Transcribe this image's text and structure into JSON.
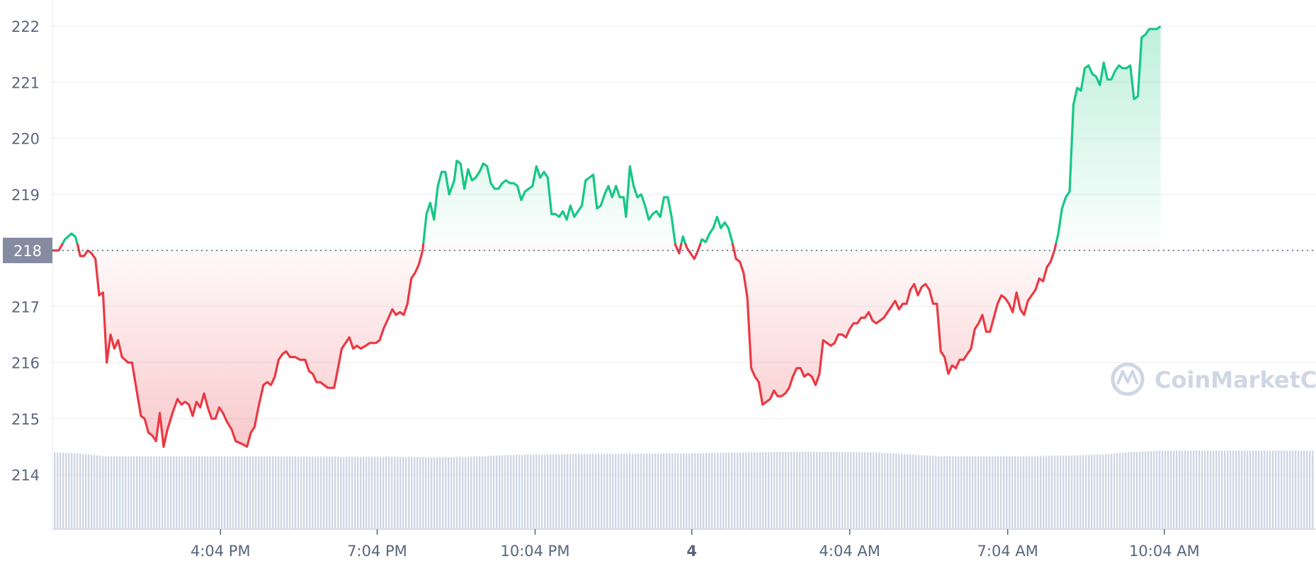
{
  "chart_data": {
    "type": "area",
    "y_ticks": [
      214,
      215,
      216,
      217,
      218,
      219,
      220,
      221,
      222
    ],
    "ylim": [
      213,
      222.4
    ],
    "x_ticks": [
      {
        "label": "4:04 PM",
        "bold": false,
        "t": 0.133
      },
      {
        "label": "7:04 PM",
        "bold": false,
        "t": 0.257
      },
      {
        "label": "10:04 PM",
        "bold": false,
        "t": 0.382
      },
      {
        "label": "4",
        "bold": true,
        "t": 0.506
      },
      {
        "label": "4:04 AM",
        "bold": false,
        "t": 0.631
      },
      {
        "label": "7:04 AM",
        "bold": false,
        "t": 0.756
      },
      {
        "label": "10:04 AM",
        "bold": false,
        "t": 0.88
      }
    ],
    "reference_line": {
      "value": 218.0,
      "label": "218"
    },
    "colors": {
      "up": "#16c784",
      "down": "#ea3943",
      "grid": "#eff2f5",
      "ref_label_bg": "#858ca2",
      "volume": "#cfd6e4"
    },
    "watermark": "CoinMarketCap",
    "price_series": [
      [
        0.0,
        218.0
      ],
      [
        0.005,
        218.0
      ],
      [
        0.01,
        218.2
      ],
      [
        0.015,
        218.3
      ],
      [
        0.018,
        218.25
      ],
      [
        0.02,
        218.1
      ],
      [
        0.022,
        217.9
      ],
      [
        0.025,
        217.9
      ],
      [
        0.028,
        218.0
      ],
      [
        0.031,
        217.95
      ],
      [
        0.034,
        217.85
      ],
      [
        0.037,
        217.2
      ],
      [
        0.04,
        217.25
      ],
      [
        0.043,
        216.0
      ],
      [
        0.046,
        216.5
      ],
      [
        0.049,
        216.25
      ],
      [
        0.052,
        216.4
      ],
      [
        0.055,
        216.1
      ],
      [
        0.06,
        216.0
      ],
      [
        0.063,
        216.0
      ],
      [
        0.07,
        215.05
      ],
      [
        0.073,
        215.0
      ],
      [
        0.076,
        214.75
      ],
      [
        0.079,
        214.7
      ],
      [
        0.082,
        214.6
      ],
      [
        0.085,
        215.1
      ],
      [
        0.088,
        214.5
      ],
      [
        0.091,
        214.8
      ],
      [
        0.095,
        215.1
      ],
      [
        0.099,
        215.35
      ],
      [
        0.102,
        215.25
      ],
      [
        0.105,
        215.3
      ],
      [
        0.108,
        215.25
      ],
      [
        0.111,
        215.05
      ],
      [
        0.114,
        215.3
      ],
      [
        0.117,
        215.2
      ],
      [
        0.12,
        215.45
      ],
      [
        0.123,
        215.2
      ],
      [
        0.126,
        215.0
      ],
      [
        0.129,
        215.0
      ],
      [
        0.132,
        215.2
      ],
      [
        0.135,
        215.1
      ],
      [
        0.138,
        214.95
      ],
      [
        0.142,
        214.8
      ],
      [
        0.145,
        214.6
      ],
      [
        0.15,
        214.55
      ],
      [
        0.154,
        214.5
      ],
      [
        0.157,
        214.75
      ],
      [
        0.16,
        214.85
      ],
      [
        0.163,
        215.2
      ],
      [
        0.167,
        215.6
      ],
      [
        0.17,
        215.65
      ],
      [
        0.173,
        215.6
      ],
      [
        0.176,
        215.75
      ],
      [
        0.179,
        216.05
      ],
      [
        0.182,
        216.15
      ],
      [
        0.185,
        216.2
      ],
      [
        0.188,
        216.1
      ],
      [
        0.192,
        216.1
      ],
      [
        0.196,
        216.05
      ],
      [
        0.2,
        216.05
      ],
      [
        0.203,
        215.85
      ],
      [
        0.206,
        215.8
      ],
      [
        0.209,
        215.65
      ],
      [
        0.212,
        215.65
      ],
      [
        0.215,
        215.6
      ],
      [
        0.218,
        215.55
      ],
      [
        0.223,
        215.55
      ],
      [
        0.226,
        215.9
      ],
      [
        0.229,
        216.25
      ],
      [
        0.232,
        216.35
      ],
      [
        0.235,
        216.45
      ],
      [
        0.238,
        216.25
      ],
      [
        0.241,
        216.3
      ],
      [
        0.244,
        216.25
      ],
      [
        0.248,
        216.3
      ],
      [
        0.251,
        216.35
      ],
      [
        0.256,
        216.35
      ],
      [
        0.259,
        216.4
      ],
      [
        0.262,
        216.6
      ],
      [
        0.265,
        216.75
      ],
      [
        0.269,
        216.95
      ],
      [
        0.272,
        216.85
      ],
      [
        0.275,
        216.9
      ],
      [
        0.278,
        216.85
      ],
      [
        0.281,
        217.05
      ],
      [
        0.284,
        217.5
      ],
      [
        0.287,
        217.6
      ],
      [
        0.29,
        217.75
      ],
      [
        0.293,
        218.0
      ],
      [
        0.296,
        218.65
      ],
      [
        0.299,
        218.85
      ],
      [
        0.302,
        218.55
      ],
      [
        0.305,
        219.15
      ],
      [
        0.308,
        219.4
      ],
      [
        0.311,
        219.4
      ],
      [
        0.314,
        219.0
      ],
      [
        0.318,
        219.25
      ],
      [
        0.32,
        219.6
      ],
      [
        0.323,
        219.55
      ],
      [
        0.326,
        219.1
      ],
      [
        0.329,
        219.45
      ],
      [
        0.332,
        219.25
      ],
      [
        0.335,
        219.3
      ],
      [
        0.338,
        219.4
      ],
      [
        0.341,
        219.55
      ],
      [
        0.344,
        219.5
      ],
      [
        0.347,
        219.2
      ],
      [
        0.35,
        219.1
      ],
      [
        0.353,
        219.1
      ],
      [
        0.356,
        219.2
      ],
      [
        0.359,
        219.25
      ],
      [
        0.362,
        219.2
      ],
      [
        0.365,
        219.2
      ],
      [
        0.368,
        219.15
      ],
      [
        0.371,
        218.9
      ],
      [
        0.374,
        219.05
      ],
      [
        0.377,
        219.1
      ],
      [
        0.38,
        219.15
      ],
      [
        0.383,
        219.5
      ],
      [
        0.386,
        219.3
      ],
      [
        0.389,
        219.4
      ],
      [
        0.392,
        219.3
      ],
      [
        0.395,
        218.65
      ],
      [
        0.398,
        218.65
      ],
      [
        0.401,
        218.6
      ],
      [
        0.404,
        218.7
      ],
      [
        0.407,
        218.55
      ],
      [
        0.41,
        218.8
      ],
      [
        0.413,
        218.6
      ],
      [
        0.416,
        218.7
      ],
      [
        0.419,
        218.8
      ],
      [
        0.422,
        219.25
      ],
      [
        0.425,
        219.3
      ],
      [
        0.428,
        219.35
      ],
      [
        0.431,
        218.75
      ],
      [
        0.434,
        218.8
      ],
      [
        0.437,
        219.0
      ],
      [
        0.44,
        219.15
      ],
      [
        0.443,
        218.95
      ],
      [
        0.446,
        219.15
      ],
      [
        0.449,
        218.95
      ],
      [
        0.452,
        218.95
      ],
      [
        0.454,
        218.6
      ],
      [
        0.457,
        219.5
      ],
      [
        0.46,
        219.15
      ],
      [
        0.463,
        218.95
      ],
      [
        0.466,
        219.0
      ],
      [
        0.469,
        218.8
      ],
      [
        0.472,
        218.55
      ],
      [
        0.475,
        218.65
      ],
      [
        0.478,
        218.7
      ],
      [
        0.481,
        218.6
      ],
      [
        0.484,
        218.95
      ],
      [
        0.487,
        218.95
      ],
      [
        0.49,
        218.6
      ],
      [
        0.493,
        218.1
      ],
      [
        0.496,
        217.95
      ],
      [
        0.499,
        218.25
      ],
      [
        0.502,
        218.05
      ],
      [
        0.505,
        217.95
      ],
      [
        0.508,
        217.85
      ],
      [
        0.511,
        218.0
      ],
      [
        0.514,
        218.2
      ],
      [
        0.517,
        218.15
      ],
      [
        0.52,
        218.3
      ],
      [
        0.523,
        218.4
      ],
      [
        0.526,
        218.6
      ],
      [
        0.529,
        218.4
      ],
      [
        0.532,
        218.5
      ],
      [
        0.535,
        218.4
      ],
      [
        0.538,
        218.15
      ],
      [
        0.541,
        217.85
      ],
      [
        0.544,
        217.8
      ],
      [
        0.547,
        217.6
      ],
      [
        0.55,
        217.15
      ],
      [
        0.553,
        215.9
      ],
      [
        0.556,
        215.75
      ],
      [
        0.559,
        215.65
      ],
      [
        0.562,
        215.25
      ],
      [
        0.565,
        215.3
      ],
      [
        0.568,
        215.35
      ],
      [
        0.571,
        215.5
      ],
      [
        0.574,
        215.4
      ],
      [
        0.577,
        215.4
      ],
      [
        0.58,
        215.45
      ],
      [
        0.583,
        215.55
      ],
      [
        0.586,
        215.75
      ],
      [
        0.589,
        215.9
      ],
      [
        0.592,
        215.9
      ],
      [
        0.595,
        215.75
      ],
      [
        0.598,
        215.8
      ],
      [
        0.601,
        215.75
      ],
      [
        0.604,
        215.6
      ],
      [
        0.607,
        215.8
      ],
      [
        0.61,
        216.4
      ],
      [
        0.613,
        216.35
      ],
      [
        0.616,
        216.3
      ],
      [
        0.619,
        216.35
      ],
      [
        0.622,
        216.5
      ],
      [
        0.625,
        216.5
      ],
      [
        0.628,
        216.45
      ],
      [
        0.631,
        216.6
      ],
      [
        0.634,
        216.7
      ],
      [
        0.637,
        216.7
      ],
      [
        0.64,
        216.8
      ],
      [
        0.643,
        216.8
      ],
      [
        0.646,
        216.9
      ],
      [
        0.649,
        216.75
      ],
      [
        0.652,
        216.7
      ],
      [
        0.655,
        216.75
      ],
      [
        0.658,
        216.8
      ],
      [
        0.661,
        216.9
      ],
      [
        0.664,
        217.0
      ],
      [
        0.667,
        217.1
      ],
      [
        0.67,
        216.95
      ],
      [
        0.673,
        217.05
      ],
      [
        0.676,
        217.05
      ],
      [
        0.679,
        217.3
      ],
      [
        0.682,
        217.4
      ],
      [
        0.685,
        217.2
      ],
      [
        0.688,
        217.35
      ],
      [
        0.691,
        217.4
      ],
      [
        0.694,
        217.3
      ],
      [
        0.697,
        217.05
      ],
      [
        0.7,
        217.05
      ],
      [
        0.703,
        216.2
      ],
      [
        0.706,
        216.1
      ],
      [
        0.709,
        215.8
      ],
      [
        0.712,
        215.95
      ],
      [
        0.715,
        215.9
      ],
      [
        0.718,
        216.05
      ],
      [
        0.721,
        216.05
      ],
      [
        0.724,
        216.15
      ],
      [
        0.727,
        216.25
      ],
      [
        0.73,
        216.6
      ],
      [
        0.733,
        216.7
      ],
      [
        0.736,
        216.85
      ],
      [
        0.739,
        216.55
      ],
      [
        0.742,
        216.55
      ],
      [
        0.745,
        216.8
      ],
      [
        0.748,
        217.05
      ],
      [
        0.751,
        217.2
      ],
      [
        0.754,
        217.15
      ],
      [
        0.757,
        217.05
      ],
      [
        0.76,
        216.9
      ],
      [
        0.763,
        217.25
      ],
      [
        0.766,
        216.95
      ],
      [
        0.769,
        216.85
      ],
      [
        0.772,
        217.1
      ],
      [
        0.775,
        217.2
      ],
      [
        0.778,
        217.3
      ],
      [
        0.781,
        217.5
      ],
      [
        0.784,
        217.45
      ],
      [
        0.787,
        217.7
      ],
      [
        0.79,
        217.8
      ],
      [
        0.793,
        218.0
      ],
      [
        0.796,
        218.3
      ],
      [
        0.799,
        218.75
      ],
      [
        0.802,
        218.95
      ],
      [
        0.805,
        219.05
      ],
      [
        0.808,
        220.6
      ],
      [
        0.811,
        220.9
      ],
      [
        0.814,
        220.85
      ],
      [
        0.817,
        221.25
      ],
      [
        0.82,
        221.3
      ],
      [
        0.823,
        221.15
      ],
      [
        0.826,
        221.1
      ],
      [
        0.829,
        220.95
      ],
      [
        0.832,
        221.35
      ],
      [
        0.835,
        221.05
      ],
      [
        0.838,
        221.05
      ],
      [
        0.841,
        221.2
      ],
      [
        0.844,
        221.3
      ],
      [
        0.847,
        221.25
      ],
      [
        0.85,
        221.25
      ],
      [
        0.853,
        221.3
      ],
      [
        0.856,
        220.7
      ],
      [
        0.859,
        220.75
      ],
      [
        0.862,
        221.8
      ],
      [
        0.865,
        221.85
      ],
      [
        0.868,
        221.95
      ],
      [
        0.871,
        221.95
      ],
      [
        0.874,
        221.95
      ],
      [
        0.877,
        222.0
      ]
    ],
    "volume_series": [
      [
        0.0,
        214.4
      ],
      [
        0.02,
        214.38
      ],
      [
        0.04,
        214.33
      ],
      [
        0.08,
        214.33
      ],
      [
        0.15,
        214.33
      ],
      [
        0.23,
        214.32
      ],
      [
        0.27,
        214.32
      ],
      [
        0.3,
        214.31
      ],
      [
        0.33,
        214.32
      ],
      [
        0.36,
        214.35
      ],
      [
        0.42,
        214.37
      ],
      [
        0.5,
        214.38
      ],
      [
        0.55,
        214.4
      ],
      [
        0.6,
        214.41
      ],
      [
        0.65,
        214.4
      ],
      [
        0.68,
        214.36
      ],
      [
        0.7,
        214.33
      ],
      [
        0.76,
        214.33
      ],
      [
        0.8,
        214.34
      ],
      [
        0.83,
        214.36
      ],
      [
        0.85,
        214.4
      ],
      [
        0.877,
        214.43
      ]
    ]
  }
}
